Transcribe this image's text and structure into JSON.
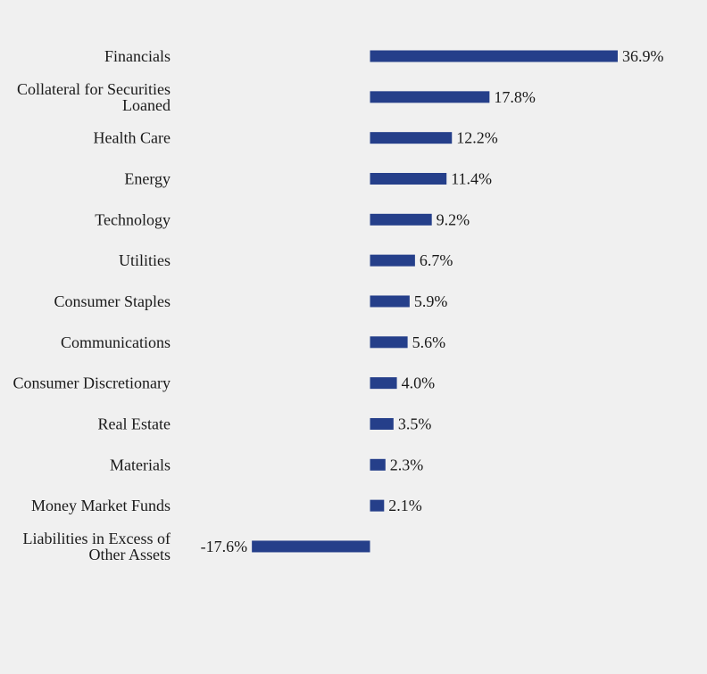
{
  "chart_data": {
    "type": "bar",
    "orientation": "horizontal",
    "title": "",
    "xlabel": "",
    "ylabel": "",
    "grid": false,
    "legend": "none",
    "bar_color": "#253f8a",
    "xlim": [
      -17.6,
      36.9
    ],
    "categories": [
      [
        "Financials"
      ],
      [
        "Collateral for Securities",
        "Loaned"
      ],
      [
        "Health Care"
      ],
      [
        "Energy"
      ],
      [
        "Technology"
      ],
      [
        "Utilities"
      ],
      [
        "Consumer Staples"
      ],
      [
        "Communications"
      ],
      [
        "Consumer Discretionary"
      ],
      [
        "Real Estate"
      ],
      [
        "Materials"
      ],
      [
        "Money Market Funds"
      ],
      [
        "Liabilities in Excess of",
        "Other Assets"
      ]
    ],
    "values": [
      36.9,
      17.8,
      12.2,
      11.4,
      9.2,
      6.7,
      5.9,
      5.6,
      4.0,
      3.5,
      2.3,
      2.1,
      -17.6
    ],
    "value_labels": [
      "36.9%",
      "17.8%",
      "12.2%",
      "11.4%",
      "9.2%",
      "6.7%",
      "5.9%",
      "5.6%",
      "4.0%",
      "3.5%",
      "2.3%",
      "2.1%",
      "-17.6%"
    ]
  }
}
